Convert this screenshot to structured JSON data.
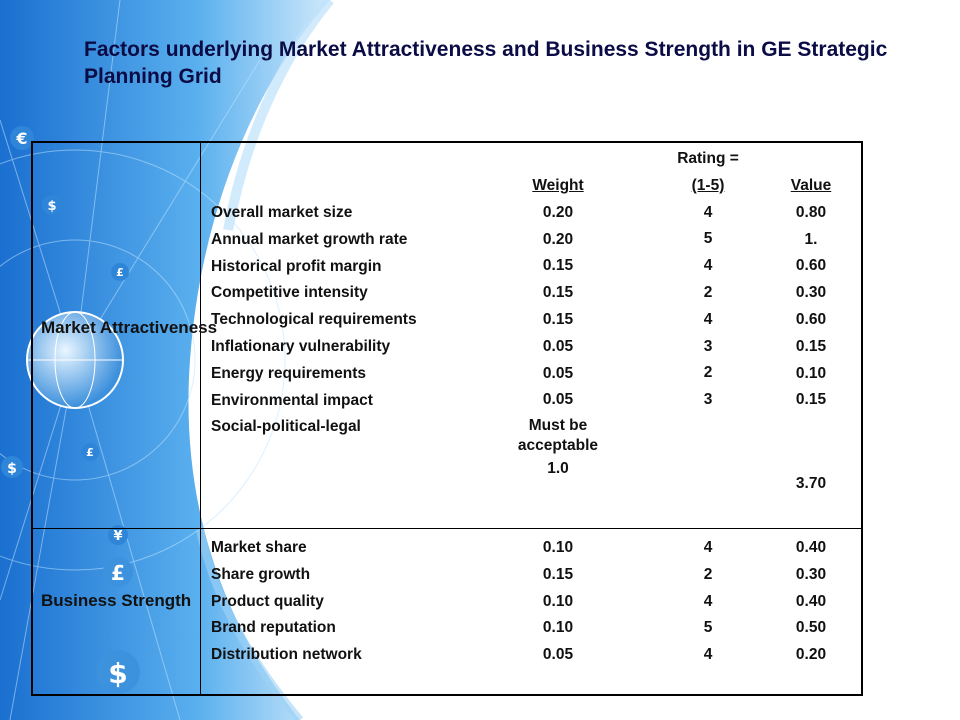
{
  "title": "Factors underlying Market Attractiveness and Business Strength in GE Strategic Planning Grid",
  "background_icons": [
    "euro-icon",
    "dollar-icon",
    "pound-icon",
    "yen-icon",
    "globe-icon"
  ],
  "market": {
    "label": "Market Attractiveness",
    "headers": {
      "weight": "Weight",
      "rating_line1": "Rating =",
      "rating_line2": "(1-5)",
      "value": "Value"
    },
    "factors": [
      "Overall market size",
      "Annual market growth rate",
      "Historical profit margin",
      "Competitive intensity",
      "Technological requirements",
      "Inflationary vulnerability",
      "Energy requirements",
      "Environmental impact",
      "Social-political-legal"
    ],
    "weights": [
      "0.20",
      "0.20",
      "0.15",
      "0.15",
      "0.15",
      "0.05",
      "0.05",
      "0.05",
      "Must be acceptable"
    ],
    "weight_total": "1.0",
    "ratings": [
      "4",
      "5",
      "4",
      "2",
      "4",
      "3",
      "2",
      "3"
    ],
    "values": [
      "0.80",
      "1.",
      "0.60",
      "0.30",
      "0.60",
      "0.15",
      "0.10",
      "0.15"
    ],
    "value_total": "3.70"
  },
  "business": {
    "label": "Business Strength",
    "factors": [
      "Market share",
      "Share growth",
      "Product quality",
      "Brand reputation",
      "Distribution network"
    ],
    "weights": [
      "0.10",
      "0.15",
      "0.10",
      "0.10",
      "0.05"
    ],
    "ratings": [
      "4",
      "2",
      "4",
      "5",
      "4"
    ],
    "values": [
      "0.40",
      "0.30",
      "0.40",
      "0.50",
      "0.20"
    ]
  }
}
